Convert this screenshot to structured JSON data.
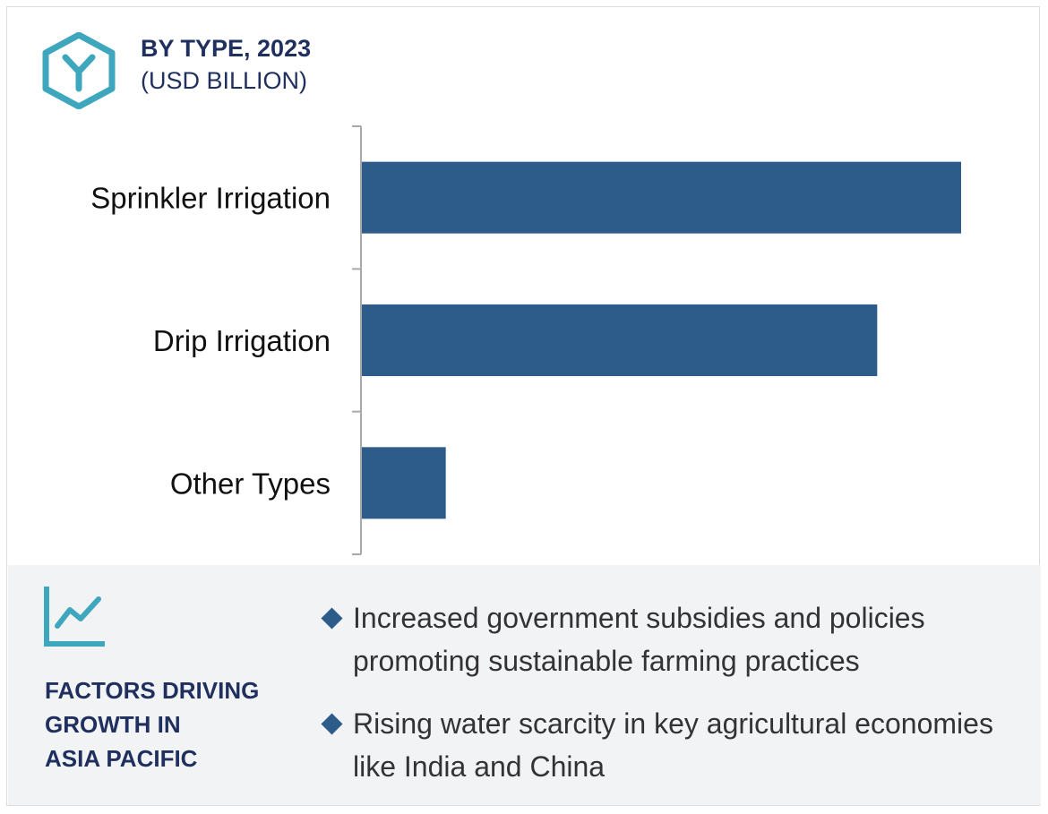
{
  "header": {
    "title": "BY TYPE, 2023",
    "subtitle": "(USD BILLION)",
    "icon": "segment-y-icon"
  },
  "colors": {
    "bar": "#2d5b8a",
    "title": "#1f2f5e",
    "accent": "#3fa7bd",
    "panel_bg": "#f2f3f5",
    "axis": "#a9a9a9"
  },
  "chart_data": {
    "type": "bar",
    "orientation": "horizontal",
    "categories": [
      "Sprinkler Irrigation",
      "Drip Irrigation",
      "Other Types"
    ],
    "values": [
      100,
      86,
      14
    ],
    "title": "BY TYPE, 2023",
    "subtitle": "(USD BILLION)",
    "xlabel": "",
    "ylabel": "",
    "xlim": [
      0,
      100
    ],
    "grid": false,
    "value_labels": false
  },
  "factors": {
    "icon": "trend-chart-icon",
    "title_lines": [
      "FACTORS DRIVING",
      "GROWTH IN",
      "ASIA PACIFIC"
    ],
    "bullets": [
      "Increased government subsidies and policies promoting sustainable farming practices",
      "Rising water scarcity in key agricultural economies like India and China"
    ]
  }
}
